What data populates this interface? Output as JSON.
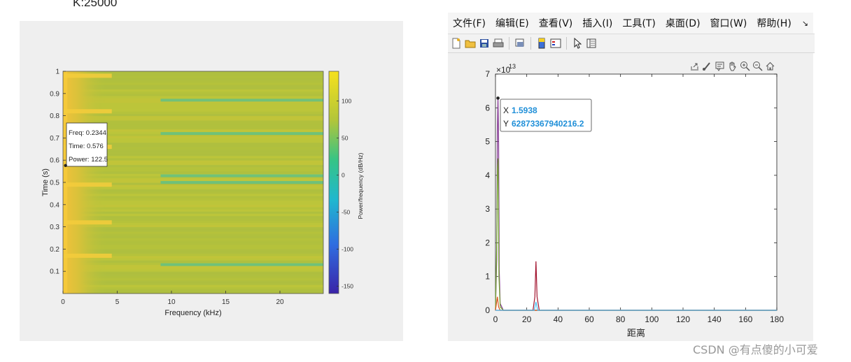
{
  "top_note": "K:25000",
  "watermark": "CSDN @有点傻的小可爱",
  "figure_window": {
    "menus": [
      "文件(F)",
      "编辑(E)",
      "查看(V)",
      "插入(I)",
      "工具(T)",
      "桌面(D)",
      "窗口(W)",
      "帮助(H)"
    ],
    "menu_overflow_icon": "arrow-more-icon",
    "toolbar_icons": [
      "new-figure-icon",
      "open-file-icon",
      "save-icon",
      "print-icon",
      "print-preview-icon",
      "colorbar-icon",
      "legend-icon",
      "select-pointer-icon",
      "property-inspector-icon"
    ],
    "axes_toolbar_icons": [
      "export-icon",
      "brush-icon",
      "data-tips-icon",
      "pan-icon",
      "zoom-in-icon",
      "zoom-out-icon",
      "home-icon"
    ]
  },
  "chart_data": [
    {
      "type": "heatmap",
      "title": "",
      "xlabel": "Frequency (kHz)",
      "ylabel": "Time (s)",
      "colorbar_label": "Power/frequency (dB/Hz)",
      "xlim": [
        0,
        24
      ],
      "ylim": [
        0,
        1
      ],
      "xticks": [
        "0",
        "5",
        "10",
        "15",
        "20"
      ],
      "yticks": [
        "0.1",
        "0.2",
        "0.3",
        "0.4",
        "0.5",
        "0.6",
        "0.7",
        "0.8",
        "0.9",
        "1"
      ],
      "colorbar_ticks": [
        "100",
        "50",
        "0",
        "-50",
        "-100",
        "-150"
      ],
      "clim": [
        -160,
        140
      ],
      "colors": {
        "low": "#3d2fb0",
        "mid": "#2cb8b0",
        "high": "#f5e232",
        "dominant": "#b8c23a"
      },
      "datatip": {
        "freq_label": "Freq: 0.2344",
        "time_label": "Time: 0.576",
        "power_label": "Power: 122.5",
        "x": 0.2344,
        "y": 0.576
      },
      "highlight_bands_time": [
        0.17,
        0.32,
        0.49,
        0.66,
        0.82,
        0.98
      ],
      "low_bands_time": [
        0.13,
        0.5,
        0.53,
        0.72,
        0.87
      ]
    },
    {
      "type": "line",
      "title": "",
      "xlabel": "距离",
      "ylabel": "",
      "y_exponent_label": "×10",
      "y_exponent": "13",
      "xlim": [
        0,
        180
      ],
      "ylim": [
        0,
        7
      ],
      "xticks": [
        "0",
        "20",
        "40",
        "60",
        "80",
        "100",
        "120",
        "140",
        "160",
        "180"
      ],
      "yticks": [
        "0",
        "1",
        "2",
        "3",
        "4",
        "5",
        "6",
        "7"
      ],
      "datatip": {
        "x_label": "X",
        "x_value": "1.5938",
        "y_label": "Y",
        "y_value": "62873367940216.2",
        "x": 1.5938,
        "y": 6.28733
      },
      "series": [
        {
          "color": "#7e2f8e",
          "x": [
            0,
            0.8,
            1.2,
            1.5938,
            2.0,
            2.4,
            3,
            5,
            180
          ],
          "values": [
            0,
            1.5,
            5.2,
            6.2873,
            5.0,
            1.2,
            0.2,
            0,
            0
          ]
        },
        {
          "color": "#77ac30",
          "x": [
            0,
            0.8,
            1.3,
            1.7,
            2.2,
            3,
            5,
            180
          ],
          "values": [
            0,
            2.0,
            4.2,
            4.5,
            1.0,
            0.1,
            0,
            0
          ]
        },
        {
          "color": "#d95319",
          "x": [
            0,
            1.2,
            2,
            3,
            180
          ],
          "values": [
            0,
            0.4,
            0.1,
            0,
            0
          ]
        },
        {
          "color": "#a2142f",
          "x": [
            0,
            24,
            25.2,
            25.9,
            26.6,
            28,
            180
          ],
          "values": [
            0,
            0,
            0.4,
            1.45,
            0.4,
            0,
            0
          ]
        },
        {
          "color": "#4dbeee",
          "x": [
            0,
            24.8,
            25.9,
            27,
            180
          ],
          "values": [
            0,
            0,
            0.25,
            0,
            0
          ]
        }
      ]
    }
  ]
}
